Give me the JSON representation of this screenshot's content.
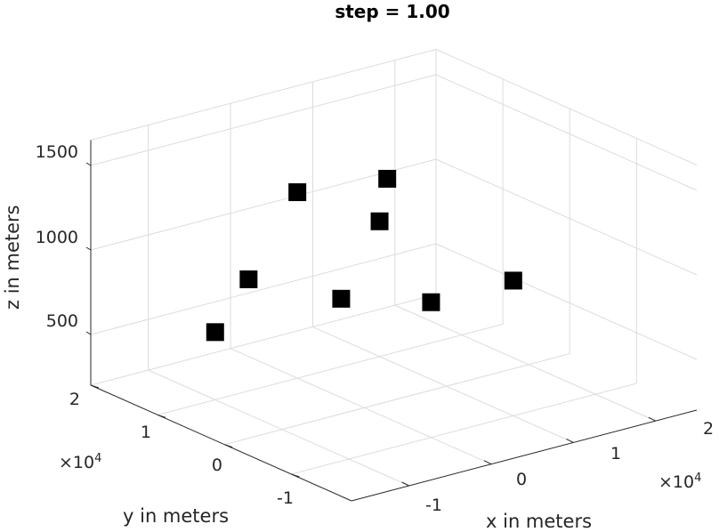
{
  "chart_data": {
    "type": "scatter",
    "title": "step = 1.00",
    "xlabel": "x in meters",
    "ylabel": "y in meters",
    "zlabel": "z in meters",
    "x_ticks": [
      "-1",
      "0",
      "1",
      "2"
    ],
    "y_ticks": [
      "-1",
      "0",
      "1",
      "2"
    ],
    "z_ticks": [
      "500",
      "1000",
      "1500"
    ],
    "x_exponent": "×10",
    "x_exponent_power": "4",
    "y_exponent": "×10",
    "y_exponent_power": "4",
    "xlim": [
      -17000,
      25000
    ],
    "ylim": [
      -19000,
      20000
    ],
    "zlim": [
      200,
      1650
    ],
    "grid": true,
    "marker": "square",
    "marker_color": "#000000",
    "points": [
      {
        "x": -10000,
        "y": 5000,
        "z": 1000
      },
      {
        "x": -10000,
        "y": 10000,
        "z": 600
      },
      {
        "x": -15000,
        "y": -15000,
        "z": 1300
      },
      {
        "x": 0,
        "y": 10000,
        "z": 1300
      },
      {
        "x": 0,
        "y": -10000,
        "z": 1000
      },
      {
        "x": 10000,
        "y": -10000,
        "z": 1000
      },
      {
        "x": 10000,
        "y": 10000,
        "z": 1000
      },
      {
        "x": 15000,
        "y": 15000,
        "z": 1100
      }
    ]
  }
}
